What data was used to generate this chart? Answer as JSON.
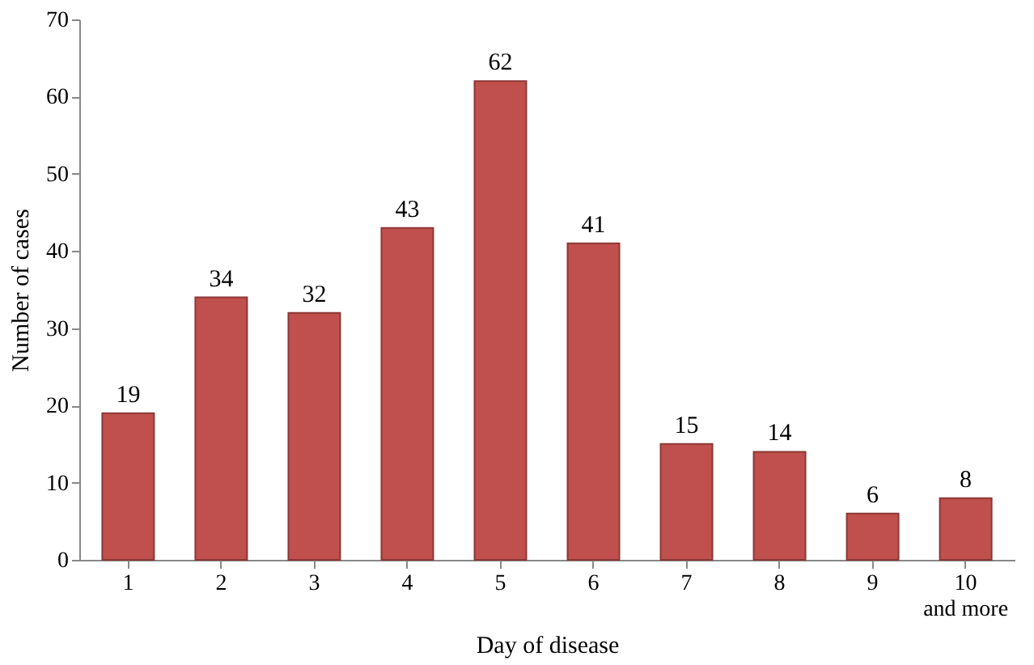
{
  "chart_data": {
    "type": "bar",
    "xlabel": "Day of disease",
    "ylabel": "Number of cases",
    "categories": [
      "1",
      "2",
      "3",
      "4",
      "5",
      "6",
      "7",
      "8",
      "9",
      "10 and more"
    ],
    "values": [
      19,
      34,
      32,
      43,
      62,
      41,
      15,
      14,
      6,
      8
    ],
    "color": "#c0504d",
    "ylim": [
      0,
      70
    ],
    "yticks": [
      0,
      10,
      20,
      30,
      40,
      50,
      60,
      70
    ],
    "data_labels": true,
    "grid": false
  }
}
